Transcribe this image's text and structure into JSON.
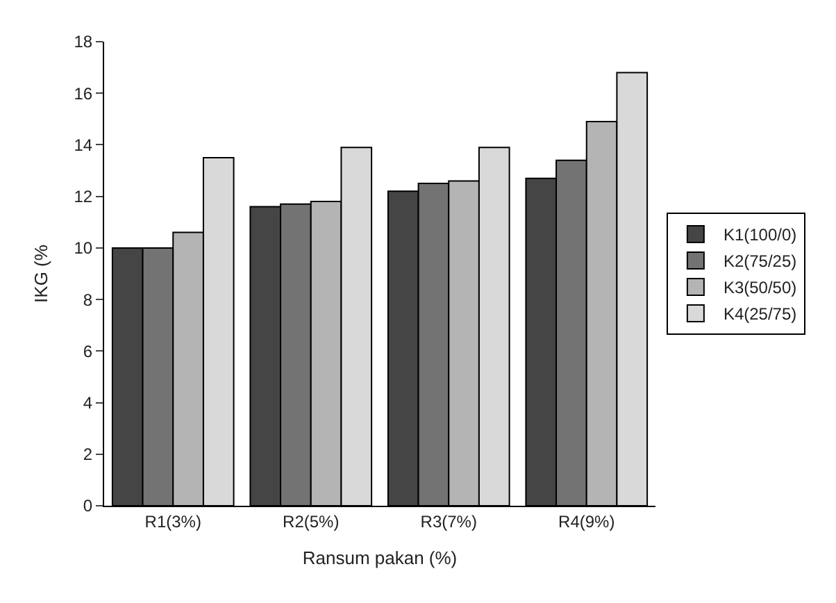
{
  "chart_data": {
    "type": "bar",
    "xlabel": "Ransum pakan (%)",
    "ylabel": "IKG (%",
    "categories": [
      "R1(3%)",
      "R2(5%)",
      "R3(7%)",
      "R4(9%)"
    ],
    "series": [
      {
        "name": "K1(100/0)",
        "color": "#454545",
        "values": [
          10.0,
          11.6,
          12.2,
          12.7
        ]
      },
      {
        "name": "K2(75/25)",
        "color": "#737373",
        "values": [
          10.0,
          11.7,
          12.5,
          13.4
        ]
      },
      {
        "name": "K3(50/50)",
        "color": "#b4b4b4",
        "values": [
          10.6,
          11.8,
          12.6,
          14.9
        ]
      },
      {
        "name": "K4(25/75)",
        "color": "#d9d9d9",
        "values": [
          13.5,
          13.9,
          13.9,
          16.8
        ]
      }
    ],
    "ylim": [
      0,
      18
    ],
    "yticks": [
      0,
      2,
      4,
      6,
      8,
      10,
      12,
      14,
      16,
      18
    ],
    "legend": "right"
  }
}
